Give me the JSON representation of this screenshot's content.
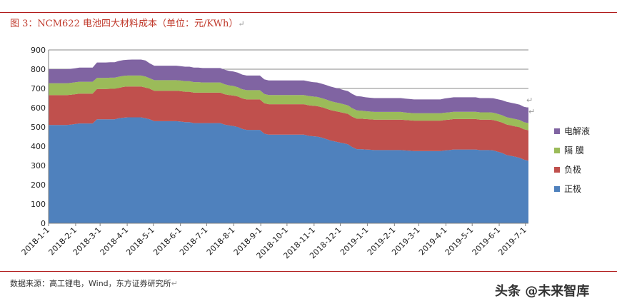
{
  "figure": {
    "title": "图 3：NCM622 电池四大材料成本（单位：元/KWh）",
    "source": "数据来源：高工锂电，Wind，东方证券研究所",
    "watermark": "头条 @未来智库"
  },
  "chart_data": {
    "type": "area",
    "stacked": true,
    "ylim": [
      0,
      900
    ],
    "yticks": [
      0,
      100,
      200,
      300,
      400,
      500,
      600,
      700,
      800,
      900
    ],
    "ytick_labels": [
      "0",
      "100",
      "200",
      "300",
      "400",
      "500",
      "600",
      "700",
      "800",
      "900"
    ],
    "xtick_labels": [
      "2018-1-1",
      "2018-2-1",
      "2018-3-1",
      "2018-4-1",
      "2018-5-1",
      "2018-6-1",
      "2018-7-1",
      "2018-8-1",
      "2018-9-1",
      "2018-10-1",
      "2018-11-1",
      "2018-12-1",
      "2019-1-1",
      "2019-2-1",
      "2019-3-1",
      "2019-4-1",
      "2019-5-1",
      "2019-6-1",
      "2019-7-1"
    ],
    "grid": "horizontal",
    "legend_position": "right",
    "x_step": "weekly",
    "x_start": "2018-1-1",
    "series": [
      {
        "name": "正极",
        "color": "#4f81bd",
        "values": [
          510,
          510,
          510,
          510,
          510,
          512,
          515,
          518,
          518,
          518,
          518,
          540,
          540,
          540,
          540,
          540,
          545,
          548,
          550,
          550,
          550,
          550,
          545,
          540,
          530,
          530,
          530,
          530,
          530,
          530,
          528,
          525,
          525,
          520,
          520,
          520,
          520,
          520,
          520,
          520,
          512,
          508,
          505,
          500,
          490,
          485,
          485,
          485,
          485,
          465,
          460,
          460,
          460,
          460,
          460,
          460,
          460,
          460,
          460,
          455,
          452,
          450,
          445,
          438,
          430,
          425,
          420,
          415,
          410,
          395,
          385,
          385,
          383,
          382,
          380,
          380,
          380,
          380,
          380,
          380,
          380,
          378,
          377,
          375,
          375,
          375,
          375,
          375,
          375,
          375,
          378,
          380,
          383,
          383,
          383,
          383,
          383,
          383,
          380,
          380,
          380,
          378,
          372,
          365,
          355,
          350,
          345,
          340,
          330,
          325
        ]
      },
      {
        "name": "负极",
        "color": "#c0504d",
        "values": [
          155,
          155,
          155,
          155,
          155,
          155,
          155,
          155,
          155,
          155,
          155,
          157,
          157,
          157,
          158,
          158,
          158,
          160,
          160,
          160,
          160,
          160,
          160,
          158,
          158,
          158,
          158,
          158,
          158,
          158,
          158,
          158,
          158,
          158,
          158,
          158,
          158,
          158,
          158,
          158,
          158,
          158,
          158,
          158,
          158,
          158,
          158,
          158,
          158,
          158,
          158,
          158,
          158,
          158,
          158,
          158,
          158,
          158,
          158,
          158,
          158,
          158,
          158,
          158,
          158,
          158,
          158,
          158,
          158,
          158,
          158,
          158,
          158,
          158,
          158,
          158,
          158,
          158,
          158,
          158,
          158,
          158,
          158,
          158,
          158,
          158,
          158,
          158,
          158,
          158,
          158,
          158,
          158,
          158,
          158,
          158,
          158,
          158,
          158,
          158,
          158,
          158,
          158,
          158,
          158,
          158,
          158,
          158,
          158,
          158
        ]
      },
      {
        "name": "隔 膜",
        "color": "#9bbb59",
        "values": [
          62,
          62,
          62,
          62,
          62,
          62,
          62,
          62,
          62,
          62,
          62,
          58,
          58,
          58,
          58,
          58,
          58,
          57,
          57,
          57,
          57,
          57,
          57,
          55,
          55,
          55,
          55,
          55,
          55,
          55,
          55,
          55,
          55,
          55,
          55,
          53,
          53,
          53,
          53,
          53,
          52,
          50,
          50,
          48,
          48,
          48,
          48,
          48,
          48,
          48,
          48,
          48,
          48,
          48,
          48,
          48,
          48,
          48,
          48,
          48,
          48,
          48,
          47,
          47,
          47,
          46,
          46,
          45,
          44,
          44,
          43,
          42,
          41,
          40,
          40,
          40,
          40,
          40,
          40,
          40,
          40,
          39,
          38,
          38,
          38,
          38,
          38,
          38,
          38,
          38,
          38,
          38,
          38,
          38,
          38,
          38,
          38,
          38,
          38,
          38,
          38,
          38,
          38,
          38,
          38,
          38,
          38,
          38,
          37,
          37
        ]
      },
      {
        "name": "电解液",
        "color": "#8064a2",
        "values": [
          73,
          73,
          73,
          73,
          73,
          73,
          73,
          73,
          73,
          73,
          73,
          80,
          80,
          80,
          80,
          80,
          82,
          82,
          82,
          83,
          83,
          83,
          83,
          77,
          75,
          75,
          75,
          75,
          75,
          75,
          75,
          75,
          75,
          75,
          75,
          75,
          75,
          75,
          75,
          75,
          75,
          75,
          75,
          76,
          76,
          76,
          76,
          76,
          76,
          76,
          76,
          76,
          76,
          76,
          76,
          76,
          76,
          76,
          76,
          76,
          75,
          75,
          75,
          75,
          75,
          75,
          75,
          74,
          74,
          74,
          74,
          73,
          72,
          72,
          72,
          72,
          72,
          72,
          72,
          72,
          72,
          72,
          72,
          72,
          72,
          72,
          72,
          72,
          72,
          72,
          74,
          75,
          75,
          75,
          75,
          75,
          75,
          75,
          74,
          74,
          74,
          75,
          76,
          78,
          80,
          80,
          80,
          80,
          80,
          80
        ]
      }
    ]
  }
}
